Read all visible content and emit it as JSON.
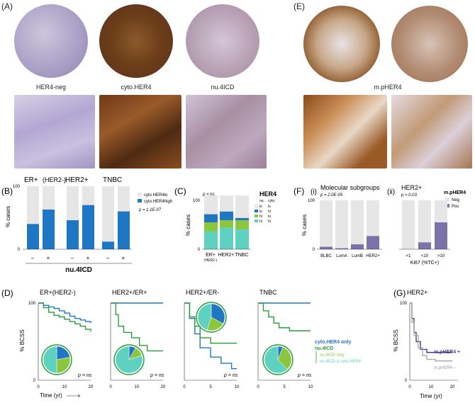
{
  "panels": {
    "A": {
      "label": "(A)",
      "captions": [
        "HER4-neg",
        "cyto.HER4",
        "nu.4ICD"
      ]
    },
    "E": {
      "label": "(E)",
      "caption": "m.pHER4"
    },
    "B": {
      "label": "(B)",
      "groups": [
        {
          "title": "ER+",
          "subtitle": "(HER2-)"
        },
        {
          "title": "HER2+",
          "subtitle": ""
        },
        {
          "title": "TNBC",
          "subtitle": ""
        }
      ],
      "xtick_minus": "–",
      "xtick_plus": "+",
      "xlabel": "nu.4ICD",
      "ylabel": "% cases",
      "y0": "0",
      "y100": "100",
      "legend": [
        "cyto.HER4lo",
        "cyto.HER4high"
      ],
      "pvalue": "p = 1.1E-07"
    },
    "C": {
      "label": "(C)",
      "pvalue": "p = ns",
      "legend_title": "HER4",
      "legend_cols": [
        "nu.",
        "cyto."
      ],
      "legend_rows": [
        [
          "lo",
          "lo"
        ],
        [
          "lo",
          "hi"
        ],
        [
          "hi",
          "lo"
        ],
        [
          "hi",
          "hi"
        ]
      ],
      "ylabel": "% cases",
      "y0": "0",
      "y100": "100",
      "categories": [
        "ER+",
        "HER2+",
        "TNBC"
      ],
      "sub_cat": "(HER2-)"
    },
    "F": {
      "label": "(F)",
      "sub_i": "(i)",
      "sub_ii": "(ii)",
      "title_i": "Molecular subgroups",
      "pvalue_i": "p = 2.0E-05",
      "title_ii": "HER2+",
      "pvalue_ii": "p = 0.03",
      "legend_title": "m.pHER4",
      "legend": [
        "Neg",
        "Pos"
      ],
      "ylabel": "% cases",
      "y0": "0",
      "y100": "100",
      "cats_i": [
        "BLBC",
        "LumA",
        "LumB",
        "HER2+"
      ],
      "cats_ii": [
        "<1",
        "<10",
        ">10"
      ],
      "xlabel_ii": "Ki67 (%TC+)"
    },
    "D": {
      "label": "(D)",
      "titles": [
        "ER+(HER2-)",
        "HER2+/ER+",
        "HER2+/ER-",
        "TNBC"
      ],
      "ylabel": "% BCSS",
      "xlabel": "Time (yr)",
      "y0": "0",
      "y100": "100",
      "ticks": [
        "0",
        "10",
        "20"
      ],
      "ticks10": [
        "0",
        "5",
        "10"
      ],
      "pvalue": "p = ns",
      "legend": [
        "cyto.HER4 only",
        "nu.4ICD",
        "nu.4ICD only",
        "nu.4ICD & cyto.HER4"
      ]
    },
    "G": {
      "label": "(G)",
      "title": "HER2+",
      "ylabel": "% BCSS",
      "xlabel": "Time (yr)",
      "y0": "0",
      "y100": "100",
      "ticks": [
        "0",
        "10",
        "20"
      ],
      "legend": [
        "m.pHER4 +",
        "m.pHER4 –"
      ]
    }
  },
  "colors": {
    "lo": "#e6e6e6",
    "high": "#1f77c4",
    "nuLoCyHi": "#1f77c4",
    "nuHiCyLo": "#8cc63f",
    "nuHiCyHi": "#5fd1c1",
    "pos": "#7a72a8",
    "neg": "#e6e6e6",
    "green": "#2a9d3a",
    "lightgreen": "#a8d86e"
  },
  "chart_data": [
    {
      "id": "B",
      "type": "bar",
      "categories": [
        "ER+ –",
        "ER+ +",
        "HER2+ –",
        "HER2+ +",
        "TNBC –",
        "TNBC +"
      ],
      "series": [
        {
          "name": "cyto.HER4high",
          "values": [
            40,
            63,
            46,
            70,
            12,
            60
          ]
        }
      ],
      "ylim": [
        0,
        100
      ]
    },
    {
      "id": "C",
      "type": "bar",
      "categories": [
        "ER+",
        "HER2+",
        "TNBC"
      ],
      "series": [
        {
          "name": "hi hi",
          "values": [
            33,
            40,
            37
          ]
        },
        {
          "name": "hi lo",
          "values": [
            17,
            14,
            17
          ]
        },
        {
          "name": "lo hi",
          "values": [
            15,
            16,
            4
          ]
        }
      ],
      "ylim": [
        0,
        100
      ]
    },
    {
      "id": "F-i",
      "type": "bar",
      "categories": [
        "BLBC",
        "LumA",
        "LumB",
        "HER2+"
      ],
      "series": [
        {
          "name": "Pos",
          "values": [
            5,
            2,
            10,
            27
          ]
        }
      ],
      "ylim": [
        0,
        100
      ]
    },
    {
      "id": "F-ii",
      "type": "bar",
      "categories": [
        "<1",
        "<10",
        ">10"
      ],
      "series": [
        {
          "name": "Pos",
          "values": [
            0,
            14,
            55
          ]
        }
      ],
      "ylim": [
        0,
        100
      ]
    },
    {
      "id": "D1",
      "type": "line",
      "series": [
        {
          "name": "cyto.HER4 only",
          "x": [
            0,
            2,
            4,
            6,
            8,
            10,
            12,
            14,
            16,
            18,
            20
          ],
          "y": [
            100,
            97,
            95,
            93,
            90,
            87,
            83,
            80,
            78,
            76,
            74
          ]
        },
        {
          "name": "nu.4ICD",
          "x": [
            0,
            2,
            4,
            6,
            8,
            10,
            12,
            14,
            16,
            18,
            20
          ],
          "y": [
            100,
            94,
            88,
            84,
            82,
            79,
            76,
            73,
            70,
            66,
            63
          ]
        }
      ],
      "xlim": [
        0,
        20
      ],
      "ylim": [
        0,
        100
      ]
    },
    {
      "id": "D2",
      "type": "line",
      "series": [
        {
          "name": "cyto.HER4 only",
          "x": [
            0,
            20
          ],
          "y": [
            100,
            100
          ]
        },
        {
          "name": "nu.4ICD",
          "x": [
            0,
            2,
            3,
            5,
            8,
            11,
            14,
            20
          ],
          "y": [
            100,
            85,
            70,
            62,
            55,
            45,
            38,
            38
          ]
        }
      ],
      "xlim": [
        0,
        20
      ],
      "ylim": [
        0,
        100
      ]
    },
    {
      "id": "D3",
      "type": "line",
      "series": [
        {
          "name": "cyto.HER4 only",
          "x": [
            0,
            1,
            2,
            3,
            5,
            7,
            9,
            10
          ],
          "y": [
            100,
            80,
            60,
            42,
            30,
            22,
            15,
            15
          ]
        },
        {
          "name": "nu.4ICD",
          "x": [
            0,
            1,
            2,
            3,
            5,
            10
          ],
          "y": [
            100,
            82,
            70,
            55,
            48,
            48
          ]
        }
      ],
      "xlim": [
        0,
        10
      ],
      "ylim": [
        0,
        100
      ]
    },
    {
      "id": "D4",
      "type": "line",
      "series": [
        {
          "name": "cyto.HER4 only",
          "x": [
            0,
            10
          ],
          "y": [
            100,
            100
          ]
        },
        {
          "name": "nu.4ICD",
          "x": [
            0,
            1,
            2,
            3,
            4,
            6,
            10
          ],
          "y": [
            100,
            90,
            82,
            74,
            68,
            64,
            64
          ]
        }
      ],
      "xlim": [
        0,
        10
      ],
      "ylim": [
        0,
        100
      ]
    },
    {
      "id": "G",
      "type": "line",
      "series": [
        {
          "name": "m.pHER4 +",
          "x": [
            0,
            1,
            2,
            3,
            5,
            8,
            12,
            20
          ],
          "y": [
            100,
            80,
            62,
            50,
            40,
            36,
            36,
            36
          ]
        },
        {
          "name": "m.pHER4 –",
          "x": [
            0,
            1,
            2,
            4,
            6,
            8,
            12,
            20
          ],
          "y": [
            100,
            75,
            58,
            42,
            32,
            27,
            25,
            25
          ]
        }
      ],
      "xlim": [
        0,
        20
      ],
      "ylim": [
        0,
        100
      ]
    }
  ]
}
